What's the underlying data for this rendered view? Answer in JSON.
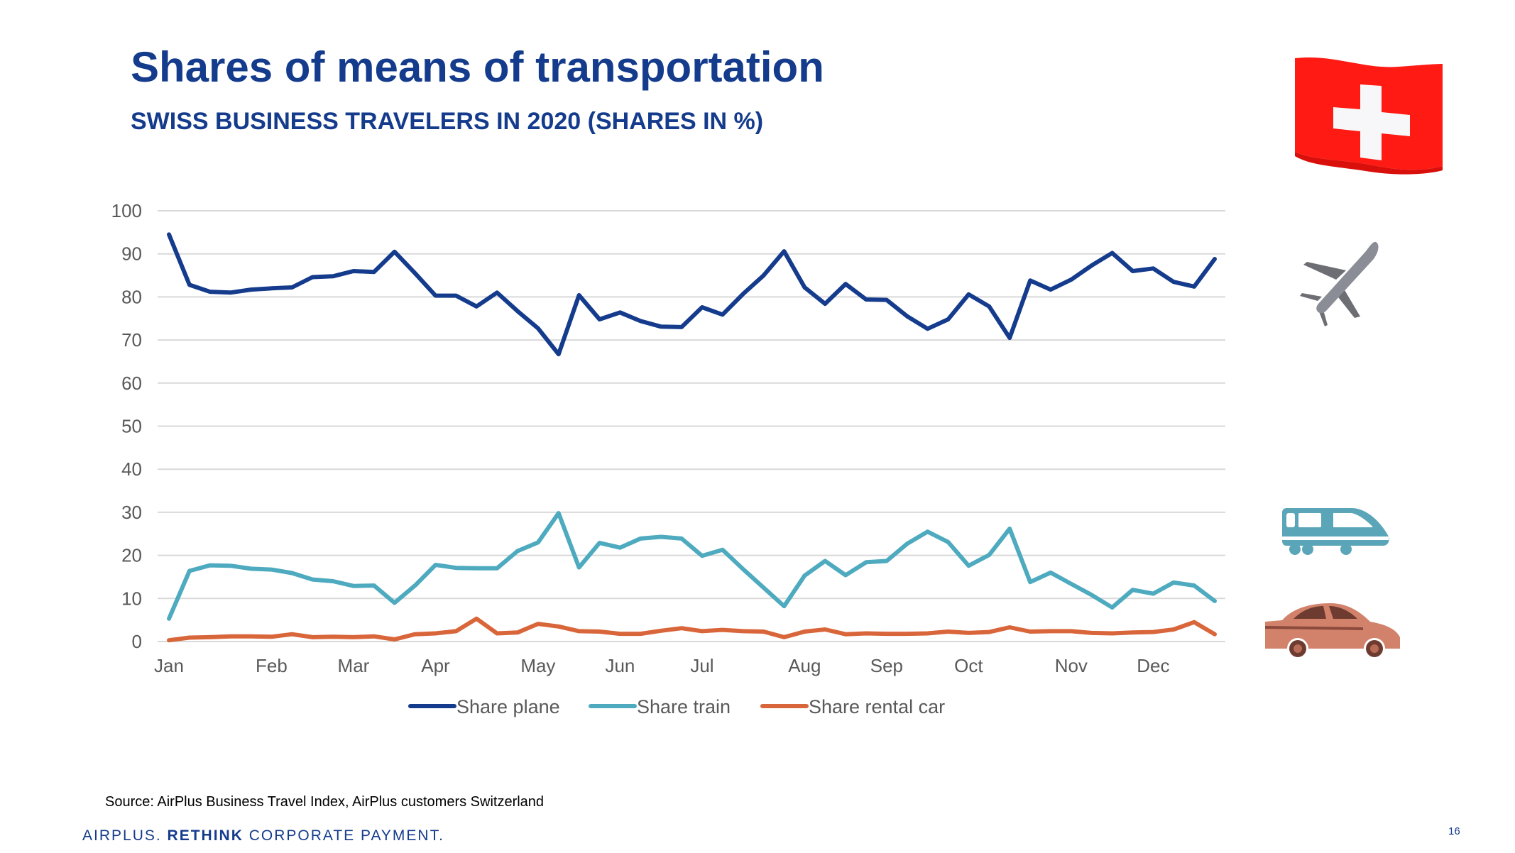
{
  "slide": {
    "title": "Shares of means of transportation",
    "subtitle": "SWISS BUSINESS TRAVELERS IN 2020 (SHARES IN %)",
    "source": "Source: AirPlus Business Travel Index, AirPlus customers Switzerland",
    "footer_prefix": "AIRPLUS. ",
    "footer_bold": "RETHINK",
    "footer_suffix": " CORPORATE PAYMENT.",
    "page_number": "16",
    "icons": [
      "swiss-flag-icon",
      "airplane-icon",
      "train-icon",
      "car-icon"
    ]
  },
  "chart_data": {
    "type": "line",
    "title": "SWISS BUSINESS TRAVELERS IN 2020 (SHARES IN %)",
    "xlabel": "",
    "ylabel": "",
    "ylim": [
      0,
      100
    ],
    "yticks": [
      0,
      10,
      20,
      30,
      40,
      50,
      60,
      70,
      80,
      90,
      100
    ],
    "grid": true,
    "legend_position": "bottom",
    "x_count": 52,
    "month_labels": [
      {
        "label": "Jan",
        "index": 0
      },
      {
        "label": "Feb",
        "index": 5
      },
      {
        "label": "Mar",
        "index": 9
      },
      {
        "label": "Apr",
        "index": 13
      },
      {
        "label": "May",
        "index": 18
      },
      {
        "label": "Jun",
        "index": 22
      },
      {
        "label": "Jul",
        "index": 26
      },
      {
        "label": "Aug",
        "index": 31
      },
      {
        "label": "Sep",
        "index": 35
      },
      {
        "label": "Oct",
        "index": 39
      },
      {
        "label": "Nov",
        "index": 44
      },
      {
        "label": "Dec",
        "index": 48
      }
    ],
    "series": [
      {
        "name": "Share plane",
        "color": "#143b8c",
        "values": [
          94.5,
          82.8,
          81.2,
          81.0,
          81.7,
          82.0,
          82.2,
          84.6,
          84.8,
          86.0,
          85.8,
          90.5,
          85.5,
          80.3,
          80.3,
          77.8,
          81.0,
          76.7,
          72.7,
          66.7,
          80.4,
          74.8,
          76.4,
          74.4,
          73.1,
          73.0,
          77.6,
          75.9,
          80.7,
          85.0,
          90.6,
          82.2,
          78.4,
          83.0,
          79.4,
          79.3,
          75.5,
          72.6,
          74.8,
          80.6,
          77.8,
          70.5,
          83.8,
          81.7,
          84.0,
          87.3,
          90.2,
          86.0,
          86.6,
          83.5,
          82.4,
          88.8
        ]
      },
      {
        "name": "Share train",
        "color": "#4eaabf",
        "values": [
          5.3,
          16.4,
          17.7,
          17.6,
          16.9,
          16.7,
          15.9,
          14.4,
          14.0,
          12.9,
          13.0,
          9.0,
          13.0,
          17.8,
          17.1,
          17.0,
          17.0,
          21.0,
          23.0,
          29.8,
          17.2,
          22.9,
          21.8,
          23.9,
          24.3,
          23.9,
          19.9,
          21.3,
          16.8,
          12.5,
          8.2,
          15.3,
          18.7,
          15.4,
          18.4,
          18.7,
          22.7,
          25.5,
          23.1,
          17.6,
          20.1,
          26.2,
          13.8,
          16.0,
          13.4,
          10.8,
          7.9,
          12.0,
          11.1,
          13.7,
          13.0,
          9.4
        ]
      },
      {
        "name": "Share rental car",
        "color": "#d9663a",
        "values": [
          0.3,
          0.9,
          1.0,
          1.2,
          1.2,
          1.1,
          1.7,
          1.0,
          1.1,
          1.0,
          1.2,
          0.5,
          1.7,
          1.9,
          2.4,
          5.3,
          1.9,
          2.1,
          4.1,
          3.5,
          2.4,
          2.3,
          1.8,
          1.8,
          2.5,
          3.1,
          2.4,
          2.7,
          2.4,
          2.3,
          1.0,
          2.3,
          2.8,
          1.7,
          1.9,
          1.8,
          1.8,
          1.9,
          2.3,
          2.0,
          2.2,
          3.3,
          2.3,
          2.4,
          2.4,
          2.0,
          1.9,
          2.1,
          2.2,
          2.8,
          4.5,
          1.7
        ]
      }
    ]
  }
}
